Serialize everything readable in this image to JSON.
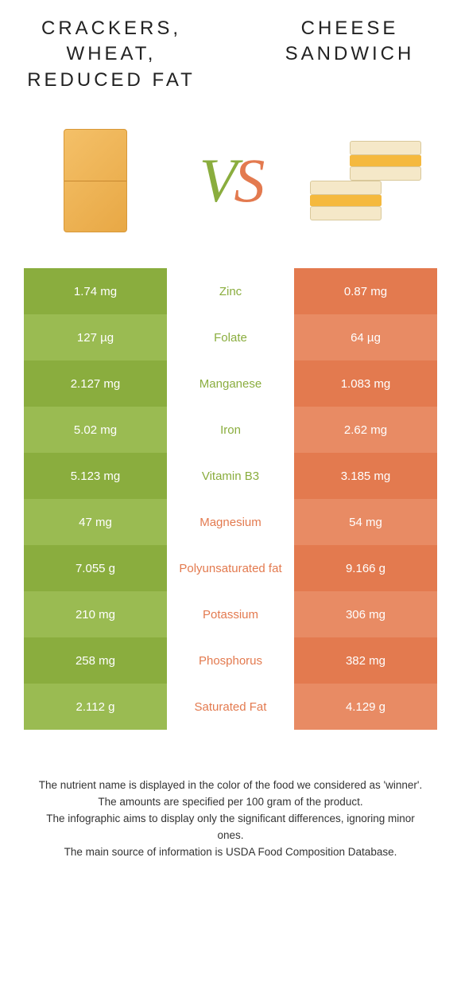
{
  "titles": {
    "left": "CRACKERS, WHEAT, REDUCED FAT",
    "right": "CHEESE SANDWICH"
  },
  "vs": {
    "v": "V",
    "s": "S"
  },
  "colors": {
    "left_odd": "#8aad3e",
    "left_even": "#9abb52",
    "right_odd": "#e37a4f",
    "right_even": "#e88b64",
    "green_text": "#8aad3e",
    "orange_text": "#e37a4f"
  },
  "rows": [
    {
      "left": "1.74 mg",
      "label": "Zinc",
      "right": "0.87 mg",
      "winner": "left"
    },
    {
      "left": "127 µg",
      "label": "Folate",
      "right": "64 µg",
      "winner": "left"
    },
    {
      "left": "2.127 mg",
      "label": "Manganese",
      "right": "1.083 mg",
      "winner": "left"
    },
    {
      "left": "5.02 mg",
      "label": "Iron",
      "right": "2.62 mg",
      "winner": "left"
    },
    {
      "left": "5.123 mg",
      "label": "Vitamin B3",
      "right": "3.185 mg",
      "winner": "left"
    },
    {
      "left": "47 mg",
      "label": "Magnesium",
      "right": "54 mg",
      "winner": "right"
    },
    {
      "left": "7.055 g",
      "label": "Polyunsaturated fat",
      "right": "9.166 g",
      "winner": "right"
    },
    {
      "left": "210 mg",
      "label": "Potassium",
      "right": "306 mg",
      "winner": "right"
    },
    {
      "left": "258 mg",
      "label": "Phosphorus",
      "right": "382 mg",
      "winner": "right"
    },
    {
      "left": "2.112 g",
      "label": "Saturated Fat",
      "right": "4.129 g",
      "winner": "right"
    }
  ],
  "footer": {
    "l1": "The nutrient name is displayed in the color of the food we considered as 'winner'.",
    "l2": "The amounts are specified per 100 gram of the product.",
    "l3": "The infographic aims to display only the significant differences, ignoring minor ones.",
    "l4": "The main source of information is USDA Food Composition Database."
  }
}
